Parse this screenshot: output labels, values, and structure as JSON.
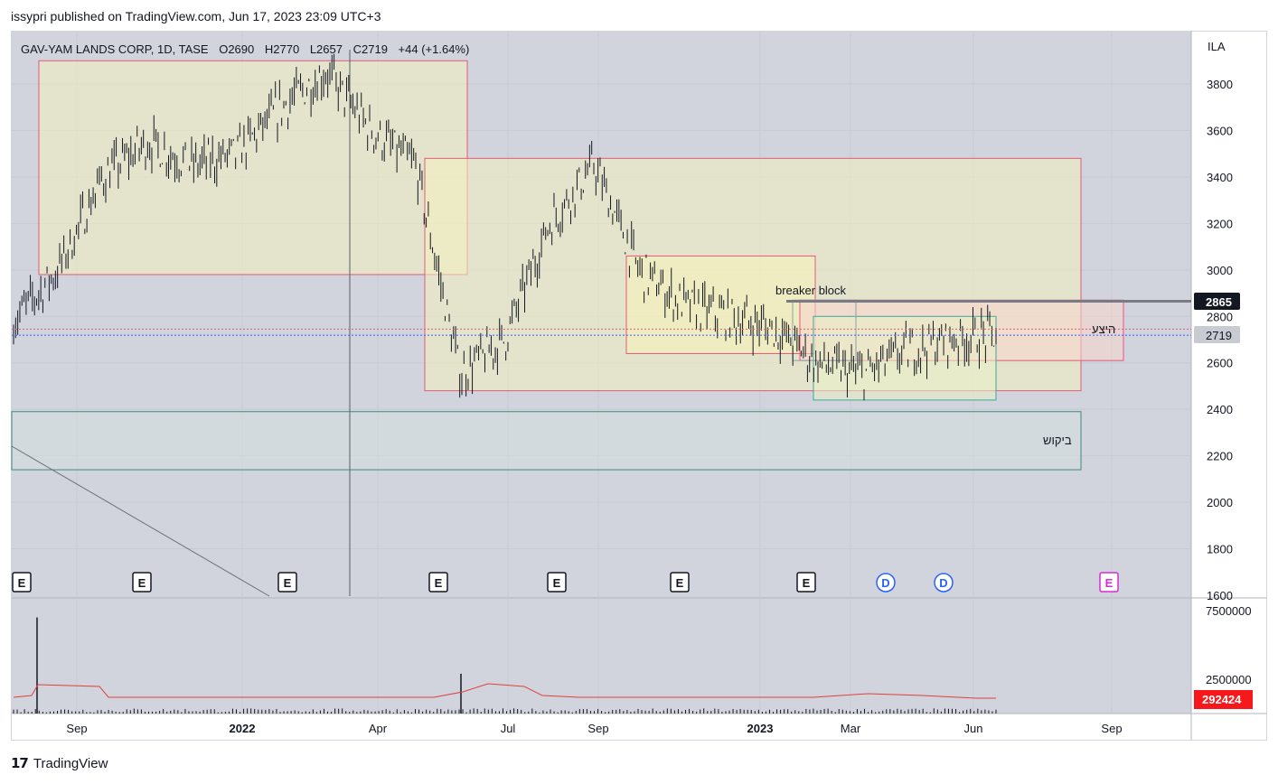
{
  "header": {
    "published": "issypri published on TradingView.com, Jun 17, 2023 23:09 UTC+3"
  },
  "legend": {
    "symbol": "GAV-YAM LANDS CORP, 1D, TASE",
    "open": "O2690",
    "high": "H2770",
    "low": "L2657",
    "close": "C2719",
    "change": "+44 (+1.64%)"
  },
  "currency": "ILA",
  "annotations": {
    "breaker_block": "breaker block",
    "supply": "היצע",
    "demand": "ביקוש"
  },
  "price_labels": {
    "level": "2865",
    "last": "2719",
    "volume_last": "292424"
  },
  "events": [
    "E",
    "E",
    "E",
    "E",
    "E",
    "E",
    "E",
    "D",
    "D",
    "E"
  ],
  "chart_data": {
    "type": "line",
    "title": "GAV-YAM LANDS CORP, 1D, TASE",
    "price_axis": {
      "ticks": [
        1600,
        1800,
        2000,
        2200,
        2400,
        2600,
        2800,
        3000,
        3200,
        3400,
        3600,
        3800
      ],
      "ylim": [
        1560,
        3960
      ]
    },
    "volume_axis": {
      "ticks": [
        "2500000",
        "7500000"
      ],
      "ylim": [
        0,
        7500000
      ]
    },
    "x_ticks": [
      "Sep",
      "2022",
      "Apr",
      "Jul",
      "Sep",
      "2023",
      "Mar",
      "Jun",
      "Sep"
    ],
    "x_ticks_bold": [
      "2022",
      "2023"
    ],
    "price_series": {
      "name": "GAV-YAM LANDS CORP",
      "x": [
        "2021-08",
        "2021-09",
        "2021-10",
        "2021-11",
        "2021-12",
        "2022-01",
        "2022-02",
        "2022-03",
        "2022-04",
        "2022-05",
        "2022-06",
        "2022-07",
        "2022-08",
        "2022-09",
        "2022-10",
        "2022-11",
        "2022-12",
        "2023-01",
        "2023-02",
        "2023-03",
        "2023-04",
        "2023-05",
        "2023-06"
      ],
      "values": [
        2780,
        3000,
        3400,
        3550,
        3450,
        3500,
        3700,
        3850,
        3600,
        3450,
        2550,
        2700,
        3200,
        3450,
        3000,
        2850,
        2800,
        2750,
        2600,
        2550,
        2650,
        2700,
        2719
      ]
    },
    "volume_series": {
      "spikes": [
        {
          "x": "2021-08",
          "value": 7000000
        },
        {
          "x": "2022-05",
          "value": 2900000
        }
      ]
    },
    "zones": [
      {
        "label": "",
        "y": [
          2980,
          3900
        ]
      },
      {
        "label": "",
        "y": [
          2480,
          3480
        ]
      },
      {
        "label": "",
        "y": [
          2640,
          3060
        ]
      },
      {
        "label": "היצע",
        "y": [
          2610,
          2870
        ]
      },
      {
        "label": "",
        "y": [
          2440,
          2800
        ]
      },
      {
        "label": "ביקוש",
        "y": [
          2140,
          2390
        ]
      }
    ],
    "grid": true
  }
}
